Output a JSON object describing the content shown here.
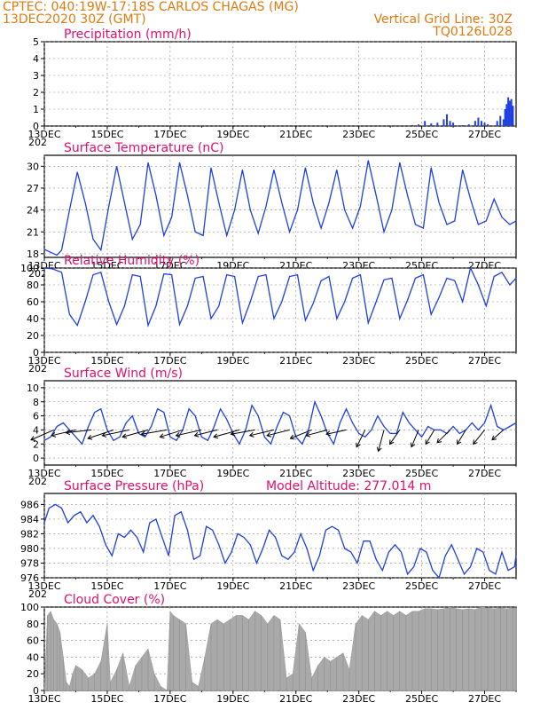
{
  "header": {
    "line1_left": "CPTEC:   040:19W-17:18S   CARLOS CHAGAS (MG)",
    "line2_left": "13DEC2020 30Z (GMT)",
    "line2_right": "Vertical Grid Line: 30Z",
    "line3_right": "TQ0126L028"
  },
  "colors": {
    "header": "#e07a10",
    "title": "#e0106e",
    "line": "#1f3fe0",
    "bars": "#1f3fe0",
    "cloud": "#a9a9a9",
    "arrow": "#000000"
  },
  "chart_data": [
    {
      "id": "precip",
      "type": "bar",
      "title": "Precipitation (mm/h)",
      "ylim": [
        0,
        5
      ],
      "yticks": [
        0,
        1,
        2,
        3,
        4,
        5
      ],
      "xlim": [
        13,
        28
      ],
      "xticks": [
        "13DEC",
        "15DEC",
        "17DEC",
        "19DEC",
        "21DEC",
        "23DEC",
        "25DEC",
        "27DEC"
      ],
      "x_first_sublabel": "202",
      "grid": true,
      "x": [
        24.7,
        24.9,
        25.1,
        25.3,
        25.5,
        25.7,
        25.8,
        25.9,
        26.0,
        26.3,
        26.5,
        26.7,
        26.8,
        26.9,
        27.0,
        27.1,
        27.4,
        27.5,
        27.6,
        27.65,
        27.7,
        27.75,
        27.8,
        27.85,
        27.9
      ],
      "values": [
        0.05,
        0.1,
        0.3,
        0.15,
        0.2,
        0.4,
        0.7,
        0.3,
        0.2,
        0.05,
        0.1,
        0.3,
        0.5,
        0.3,
        0.2,
        0.1,
        0.3,
        0.6,
        0.4,
        1.0,
        1.3,
        1.7,
        1.5,
        1.6,
        1.2
      ]
    },
    {
      "id": "temp",
      "type": "line",
      "title": "Surface Temperature (nC)",
      "ylim": [
        17.5,
        31.5
      ],
      "yticks": [
        18,
        21,
        24,
        27,
        30
      ],
      "xlim": [
        13,
        28
      ],
      "xticks": [
        "13DEC",
        "15DEC",
        "17DEC",
        "19DEC",
        "21DEC",
        "23DEC",
        "25DEC",
        "27DEC"
      ],
      "x_first_sublabel": "202",
      "grid": true,
      "x": [
        13.0,
        13.2,
        13.4,
        13.55,
        13.8,
        14.05,
        14.3,
        14.55,
        14.8,
        15.05,
        15.3,
        15.55,
        15.8,
        16.05,
        16.3,
        16.55,
        16.8,
        17.05,
        17.3,
        17.55,
        17.8,
        18.05,
        18.3,
        18.55,
        18.8,
        19.05,
        19.3,
        19.55,
        19.8,
        20.05,
        20.3,
        20.55,
        20.8,
        21.05,
        21.3,
        21.55,
        21.8,
        22.05,
        22.3,
        22.55,
        22.8,
        23.05,
        23.3,
        23.55,
        23.8,
        24.05,
        24.3,
        24.55,
        24.8,
        25.05,
        25.3,
        25.55,
        25.8,
        26.05,
        26.3,
        26.55,
        26.8,
        27.05,
        27.3,
        27.55,
        27.8,
        28.0
      ],
      "values": [
        18.6,
        18.2,
        17.8,
        18.5,
        24.0,
        29.2,
        25.0,
        20.0,
        18.5,
        24.5,
        30.0,
        25.0,
        20.0,
        22.0,
        30.5,
        26.0,
        20.5,
        23.0,
        30.5,
        26.0,
        21.0,
        20.5,
        29.8,
        25.0,
        20.5,
        24.0,
        29.5,
        24.0,
        20.8,
        24.5,
        29.5,
        25.0,
        21.0,
        24.0,
        29.8,
        25.0,
        21.5,
        25.0,
        29.5,
        24.0,
        21.5,
        24.5,
        30.8,
        26.0,
        21.0,
        24.0,
        30.5,
        26.0,
        22.0,
        21.5,
        29.8,
        25.0,
        22.0,
        22.5,
        29.5,
        25.5,
        22.0,
        22.5,
        25.5,
        23.0,
        22.0,
        22.5
      ]
    },
    {
      "id": "rh",
      "type": "line",
      "title": "Relative Humidity (%)",
      "ylim": [
        0,
        100
      ],
      "yticks": [
        0,
        20,
        40,
        60,
        80,
        100
      ],
      "xlim": [
        13,
        28
      ],
      "xticks": [
        "13DEC",
        "15DEC",
        "17DEC",
        "19DEC",
        "21DEC",
        "23DEC",
        "25DEC",
        "27DEC"
      ],
      "x_first_sublabel": "202",
      "grid": true,
      "x": [
        13.0,
        13.25,
        13.55,
        13.8,
        14.05,
        14.3,
        14.55,
        14.8,
        15.05,
        15.3,
        15.55,
        15.8,
        16.05,
        16.3,
        16.55,
        16.8,
        17.05,
        17.3,
        17.55,
        17.8,
        18.05,
        18.3,
        18.55,
        18.8,
        19.05,
        19.3,
        19.55,
        19.8,
        20.05,
        20.3,
        20.55,
        20.8,
        21.05,
        21.3,
        21.55,
        21.8,
        22.05,
        22.3,
        22.55,
        22.8,
        23.05,
        23.3,
        23.55,
        23.8,
        24.05,
        24.3,
        24.55,
        24.8,
        25.05,
        25.3,
        25.55,
        25.8,
        26.05,
        26.3,
        26.55,
        26.8,
        27.05,
        27.3,
        27.55,
        27.8,
        28.0
      ],
      "values": [
        100,
        99,
        95,
        45,
        32,
        60,
        92,
        95,
        60,
        33,
        55,
        92,
        90,
        32,
        55,
        93,
        92,
        33,
        55,
        88,
        90,
        40,
        55,
        92,
        90,
        35,
        60,
        90,
        92,
        40,
        60,
        90,
        92,
        38,
        58,
        85,
        90,
        40,
        60,
        88,
        92,
        35,
        60,
        86,
        88,
        40,
        62,
        88,
        92,
        45,
        65,
        88,
        85,
        60,
        100,
        80,
        55,
        90,
        95,
        80,
        88
      ]
    },
    {
      "id": "wind",
      "type": "line",
      "title": "Surface Wind (m/s)",
      "ylim": [
        -1,
        11
      ],
      "yticks": [
        0,
        2,
        4,
        6,
        8,
        10
      ],
      "xlim": [
        13,
        28
      ],
      "xticks": [
        "13DEC",
        "15DEC",
        "17DEC",
        "19DEC",
        "21DEC",
        "23DEC",
        "25DEC",
        "27DEC"
      ],
      "x_first_sublabel": "202",
      "grid": true,
      "x": [
        13.0,
        13.2,
        13.4,
        13.6,
        13.8,
        14.0,
        14.2,
        14.4,
        14.6,
        14.8,
        15.0,
        15.2,
        15.4,
        15.6,
        15.8,
        16.0,
        16.2,
        16.4,
        16.6,
        16.8,
        17.0,
        17.2,
        17.4,
        17.6,
        17.8,
        18.0,
        18.2,
        18.4,
        18.6,
        18.8,
        19.0,
        19.2,
        19.4,
        19.6,
        19.8,
        20.0,
        20.2,
        20.4,
        20.6,
        20.8,
        21.0,
        21.2,
        21.4,
        21.6,
        21.8,
        22.0,
        22.2,
        22.4,
        22.6,
        22.8,
        23.0,
        23.2,
        23.4,
        23.6,
        23.8,
        24.0,
        24.2,
        24.4,
        24.6,
        24.8,
        25.0,
        25.2,
        25.4,
        25.6,
        25.8,
        26.0,
        26.2,
        26.4,
        26.6,
        26.8,
        27.0,
        27.2,
        27.4,
        27.6,
        27.8,
        28.0
      ],
      "values": [
        2.5,
        3.0,
        4.5,
        5.0,
        4.0,
        3.0,
        2.0,
        4.5,
        6.5,
        7.0,
        4.0,
        2.5,
        3.0,
        5.0,
        6.0,
        3.5,
        3.0,
        4.5,
        7.0,
        6.5,
        3.0,
        2.5,
        4.0,
        7.0,
        6.0,
        3.0,
        2.5,
        4.5,
        7.0,
        5.5,
        3.5,
        2.0,
        4.0,
        7.5,
        6.0,
        3.0,
        2.0,
        4.5,
        6.5,
        6.0,
        3.0,
        2.0,
        4.0,
        8.0,
        6.0,
        3.5,
        2.0,
        5.0,
        7.0,
        5.0,
        3.5,
        3.0,
        4.0,
        6.0,
        4.5,
        3.5,
        3.5,
        6.5,
        5.0,
        4.0,
        3.0,
        4.5,
        4.0,
        4.0,
        3.5,
        4.5,
        3.5,
        4.0,
        5.0,
        4.0,
        5.0,
        7.5,
        4.5,
        4.0,
        4.5,
        5.0
      ],
      "vectors_x": [
        13.3,
        14.0,
        14.5,
        15.2,
        15.7,
        16.3,
        16.9,
        17.4,
        18.0,
        18.5,
        19.2,
        19.7,
        20.3,
        20.8,
        21.5,
        22.0,
        22.6,
        23.2,
        23.8,
        24.3,
        24.9,
        25.4,
        25.9,
        26.4,
        27.0,
        27.6
      ],
      "vectors_u": [
        1.6,
        1.7,
        1.8,
        1.8,
        1.9,
        1.8,
        1.8,
        1.6,
        1.8,
        1.6,
        1.8,
        1.7,
        1.7,
        1.6,
        1.5,
        1.5,
        1.4,
        0.6,
        0.4,
        0.7,
        0.5,
        0.6,
        0.9,
        0.6,
        0.8,
        0.8
      ],
      "vectors_v": [
        0.7,
        0.4,
        0.2,
        0.6,
        0.4,
        0.5,
        0.3,
        0.5,
        0.4,
        0.4,
        0.5,
        0.3,
        0.4,
        0.4,
        0.6,
        0.4,
        0.3,
        1.2,
        1.5,
        1.0,
        1.2,
        1.0,
        0.9,
        1.0,
        1.0,
        0.7
      ]
    },
    {
      "id": "pres",
      "type": "line",
      "title": "Surface Pressure (hPa)",
      "subtitle": "Model Altitude: 277.014 m",
      "ylim": [
        976,
        987.5
      ],
      "yticks": [
        976,
        978,
        980,
        982,
        984,
        986
      ],
      "xlim": [
        13,
        28
      ],
      "xticks": [
        "13DEC",
        "15DEC",
        "17DEC",
        "19DEC",
        "21DEC",
        "23DEC",
        "25DEC",
        "27DEC"
      ],
      "x_first_sublabel": "202",
      "grid": true,
      "x": [
        13.0,
        13.15,
        13.35,
        13.55,
        13.75,
        13.95,
        14.15,
        14.35,
        14.55,
        14.75,
        14.95,
        15.15,
        15.35,
        15.55,
        15.75,
        15.95,
        16.15,
        16.35,
        16.55,
        16.75,
        16.95,
        17.15,
        17.35,
        17.55,
        17.75,
        17.95,
        18.15,
        18.35,
        18.55,
        18.75,
        18.95,
        19.15,
        19.35,
        19.55,
        19.75,
        19.95,
        20.15,
        20.35,
        20.55,
        20.75,
        20.95,
        21.15,
        21.35,
        21.55,
        21.75,
        21.95,
        22.15,
        22.35,
        22.55,
        22.75,
        22.95,
        23.15,
        23.35,
        23.55,
        23.75,
        23.95,
        24.15,
        24.35,
        24.55,
        24.75,
        24.95,
        25.15,
        25.35,
        25.55,
        25.75,
        25.95,
        26.15,
        26.35,
        26.55,
        26.75,
        26.95,
        27.15,
        27.35,
        27.55,
        27.75,
        27.95,
        28.0
      ],
      "values": [
        983.5,
        985.5,
        986.0,
        985.5,
        983.5,
        984.5,
        985.0,
        983.5,
        984.5,
        983.0,
        980.5,
        979.0,
        982.0,
        981.5,
        982.5,
        981.5,
        979.5,
        983.5,
        984.0,
        981.5,
        979.0,
        984.5,
        985.0,
        982.5,
        978.5,
        979.0,
        983.0,
        982.5,
        980.5,
        978.0,
        979.5,
        982.0,
        981.5,
        980.5,
        978.0,
        980.0,
        982.5,
        981.5,
        979.0,
        978.5,
        979.5,
        982.0,
        980.0,
        977.0,
        979.0,
        982.5,
        983.0,
        982.5,
        980.0,
        979.5,
        978.0,
        981.0,
        981.0,
        978.5,
        977.0,
        979.5,
        980.5,
        979.5,
        976.5,
        977.5,
        980.0,
        979.5,
        977.0,
        976.0,
        979.0,
        980.5,
        978.5,
        976.5,
        977.5,
        980.0,
        979.5,
        977.0,
        976.5,
        979.5,
        977.0,
        977.5,
        979.0
      ]
    },
    {
      "id": "cloud",
      "type": "area",
      "title": "Cloud Cover (%)",
      "ylim": [
        0,
        100
      ],
      "yticks": [
        0,
        20,
        40,
        60,
        80,
        100
      ],
      "xlim": [
        13,
        28
      ],
      "xticks": [
        "13DEC",
        "15DEC",
        "17DEC",
        "19DEC",
        "21DEC",
        "23DEC",
        "25DEC",
        "27DEC"
      ],
      "grid": true,
      "x": [
        13.0,
        13.1,
        13.2,
        13.3,
        13.4,
        13.5,
        13.6,
        13.7,
        13.8,
        13.9,
        14.0,
        14.2,
        14.4,
        14.6,
        14.8,
        15.0,
        15.1,
        15.3,
        15.5,
        15.7,
        15.9,
        16.1,
        16.3,
        16.5,
        16.7,
        16.9,
        17.0,
        17.1,
        17.3,
        17.5,
        17.7,
        17.9,
        18.1,
        18.3,
        18.5,
        18.7,
        18.9,
        19.1,
        19.3,
        19.5,
        19.7,
        19.9,
        20.1,
        20.3,
        20.5,
        20.7,
        20.9,
        21.1,
        21.3,
        21.5,
        21.7,
        21.9,
        22.1,
        22.3,
        22.5,
        22.7,
        22.9,
        23.1,
        23.3,
        23.5,
        23.7,
        23.9,
        24.1,
        24.3,
        24.5,
        24.7,
        24.9,
        25.1,
        25.3,
        25.5,
        25.7,
        25.9,
        26.1,
        26.3,
        26.5,
        26.7,
        26.9,
        27.1,
        27.3,
        27.5,
        27.7,
        27.9,
        28.0
      ],
      "values": [
        0,
        90,
        95,
        85,
        80,
        70,
        40,
        10,
        5,
        20,
        30,
        25,
        15,
        20,
        35,
        80,
        10,
        25,
        45,
        5,
        30,
        40,
        50,
        20,
        5,
        0,
        95,
        90,
        85,
        80,
        10,
        5,
        40,
        80,
        85,
        80,
        85,
        90,
        90,
        85,
        95,
        90,
        80,
        90,
        85,
        15,
        20,
        80,
        70,
        15,
        30,
        40,
        35,
        40,
        45,
        25,
        80,
        90,
        85,
        95,
        90,
        95,
        90,
        95,
        90,
        95,
        95,
        98,
        98,
        97,
        98,
        100,
        98,
        97,
        98,
        97,
        100,
        99,
        98,
        99,
        98,
        99,
        99
      ]
    }
  ]
}
